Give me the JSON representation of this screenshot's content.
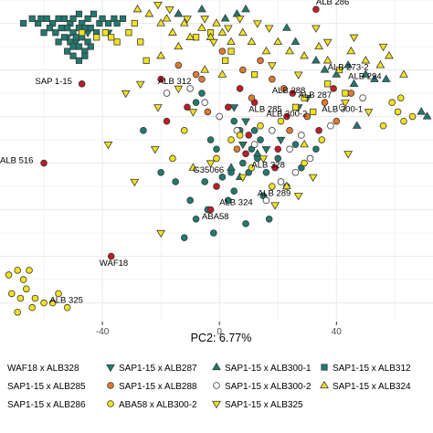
{
  "chart_data": {
    "type": "scatter",
    "xlabel": "PC2: 6.77%",
    "ylabel": "",
    "x_ticks": [
      -40,
      0,
      40
    ],
    "xlim": [
      -75,
      73
    ],
    "ylim": [
      -44,
      25
    ],
    "grid": true,
    "legend_position": "bottom",
    "colors": {
      "green": "#1f7a70",
      "red": "#c01c25",
      "orange": "#e3792d",
      "yellow": "#f2e21a",
      "white": "#ffffff",
      "outline": "#3a3a3a",
      "grid": "#ebebeb"
    },
    "series": [
      {
        "name": "WAF18 x ALB328",
        "shape": "circle",
        "fill": "green",
        "points": [
          [
            -8,
            3
          ],
          [
            -6,
            5
          ],
          [
            -3,
            -5
          ],
          [
            -1,
            -7
          ],
          [
            5,
            -1
          ],
          [
            7,
            -3
          ],
          [
            8,
            -10
          ],
          [
            10,
            -12
          ],
          [
            11,
            -7
          ],
          [
            13,
            -9
          ],
          [
            14,
            -5
          ],
          [
            12,
            -3
          ],
          [
            -15,
            -14
          ],
          [
            -10,
            -18
          ],
          [
            -4,
            -20
          ],
          [
            -8,
            -22
          ],
          [
            -2,
            -25
          ],
          [
            3,
            -18
          ],
          [
            1,
            -13
          ],
          [
            5,
            -16
          ],
          [
            -20,
            -12
          ],
          [
            -26,
            -3
          ],
          [
            4,
            -12
          ],
          [
            -5,
            -14
          ],
          [
            15,
            -17
          ],
          [
            16,
            -12
          ],
          [
            23,
            -15
          ],
          [
            28,
            -11
          ],
          [
            26,
            -6
          ],
          [
            33,
            -7
          ],
          [
            17,
            -22
          ],
          [
            9,
            -23
          ],
          [
            20,
            -9
          ],
          [
            -12,
            -26
          ]
        ]
      },
      {
        "name": "SAP1-15 x ALB287",
        "shape": "triangle-down",
        "fill": "green",
        "points": [
          [
            -52,
            17
          ],
          [
            -49,
            16
          ],
          [
            -45,
            18
          ],
          [
            -38,
            18
          ],
          [
            5,
            2
          ],
          [
            9,
            -1
          ],
          [
            16,
            -7
          ],
          [
            21,
            -5
          ],
          [
            27,
            2
          ],
          [
            30,
            4
          ],
          [
            8,
            -6
          ]
        ]
      },
      {
        "name": "SAP1-15 x ALB300-1",
        "shape": "triangle-up",
        "fill": "green",
        "points": [
          [
            -14,
            22
          ],
          [
            -6,
            23
          ],
          [
            2,
            21
          ],
          [
            6,
            22
          ],
          [
            9,
            23
          ],
          [
            23,
            19
          ],
          [
            26,
            16
          ],
          [
            33,
            12
          ],
          [
            36,
            10
          ],
          [
            40,
            9
          ],
          [
            44,
            11
          ],
          [
            46,
            7
          ],
          [
            50,
            9
          ],
          [
            53,
            8
          ],
          [
            57,
            8
          ],
          [
            71,
            0
          ],
          [
            69,
            1
          ],
          [
            47,
            -2
          ],
          [
            13,
            -8
          ],
          [
            7,
            -13
          ],
          [
            4,
            -11
          ],
          [
            -14,
            22
          ]
        ]
      },
      {
        "name": "SAP1-15 x ALB312",
        "shape": "square",
        "fill": "green",
        "points": [
          [
            -67,
            20
          ],
          [
            -64,
            21
          ],
          [
            -62,
            20
          ],
          [
            -61,
            21
          ],
          [
            -59,
            21
          ],
          [
            -57,
            20
          ],
          [
            -55,
            21
          ],
          [
            -53,
            21
          ],
          [
            -51,
            20
          ],
          [
            -50,
            21
          ],
          [
            -48,
            22
          ],
          [
            -47,
            20
          ],
          [
            -45,
            21
          ],
          [
            -43,
            22
          ],
          [
            -41,
            20
          ],
          [
            -40,
            21
          ],
          [
            -38,
            20
          ],
          [
            -36,
            21
          ],
          [
            -35,
            20
          ],
          [
            -33,
            21
          ],
          [
            -60,
            18
          ],
          [
            -58,
            19
          ],
          [
            -56,
            18
          ],
          [
            -54,
            19
          ],
          [
            -52,
            19
          ],
          [
            -50,
            18
          ],
          [
            -48,
            19
          ],
          [
            -46,
            19
          ],
          [
            -44,
            19
          ],
          [
            -42,
            18
          ],
          [
            -55,
            16
          ],
          [
            -53,
            17
          ],
          [
            -51,
            16
          ],
          [
            -49,
            17
          ],
          [
            -47,
            17
          ],
          [
            -45,
            16
          ],
          [
            -52,
            14
          ],
          [
            -50,
            15
          ],
          [
            -48,
            15
          ],
          [
            -46,
            14
          ],
          [
            -44,
            15
          ],
          [
            -50,
            13
          ],
          [
            -48,
            12
          ],
          [
            -46,
            13
          ]
        ]
      },
      {
        "name": "SAP1-15 x ALB285",
        "shape": "circle",
        "fill": "red",
        "points": [
          [
            -47,
            7
          ],
          [
            -20,
            8
          ],
          [
            -11,
            2
          ],
          [
            -18,
            -1
          ],
          [
            3,
            2
          ],
          [
            7,
            6
          ],
          [
            9,
            -8
          ],
          [
            -1,
            -15
          ],
          [
            -3,
            -20
          ],
          [
            23,
            0
          ],
          [
            25,
            5
          ],
          [
            34,
            -3
          ],
          [
            39,
            6
          ],
          [
            33,
            23
          ],
          [
            -60,
            -10
          ],
          [
            -37,
            -30
          ],
          [
            10,
            -4
          ],
          [
            20,
            -7
          ],
          [
            19,
            -11
          ],
          [
            12,
            3
          ]
        ]
      },
      {
        "name": "SAP1-15 x ALB288",
        "shape": "circle",
        "fill": "orange",
        "points": [
          [
            -14,
            11
          ],
          [
            -8,
            9
          ],
          [
            1,
            14
          ],
          [
            8,
            10
          ],
          [
            14,
            12
          ],
          [
            18,
            8
          ],
          [
            22,
            6
          ],
          [
            -4,
            1
          ],
          [
            11,
            4
          ],
          [
            24,
            -3
          ],
          [
            30,
            0
          ],
          [
            36,
            3
          ],
          [
            40,
            -1
          ],
          [
            6,
            -7
          ],
          [
            -6,
            8
          ],
          [
            45,
            5
          ]
        ]
      },
      {
        "name": "SAP1-15 x ALB286",
        "shape": "square",
        "fill": "yellow",
        "points": [
          [
            -47,
            18
          ],
          [
            -42,
            17
          ],
          [
            -39,
            18
          ],
          [
            -37,
            17
          ],
          [
            -35,
            16
          ],
          [
            -31,
            18
          ],
          [
            -29,
            20
          ],
          [
            -27,
            16
          ],
          [
            26,
            2
          ],
          [
            29,
            4
          ],
          [
            37,
            7
          ],
          [
            43,
            5
          ],
          [
            41,
            10
          ],
          [
            -3,
            18
          ],
          [
            -8,
            17
          ],
          [
            2,
            12
          ],
          [
            4,
            14
          ],
          [
            12,
            9
          ],
          [
            32,
            1
          ],
          [
            -25,
            12
          ]
        ]
      },
      {
        "name": "SAP1-15 x ALB300-2",
        "shape": "circle",
        "fill": "white",
        "points": [
          [
            -18,
            5
          ],
          [
            -10,
            6
          ],
          [
            -5,
            3
          ],
          [
            0,
            0
          ],
          [
            6,
            -3
          ],
          [
            12,
            -6
          ],
          [
            18,
            -3
          ],
          [
            24,
            -7
          ],
          [
            28,
            -4
          ],
          [
            31,
            -9
          ],
          [
            21,
            -14
          ],
          [
            16,
            -18
          ],
          [
            38,
            -2
          ],
          [
            42,
            2
          ],
          [
            49,
            4
          ],
          [
            26,
            -12
          ]
        ]
      },
      {
        "name": "ABA58 x ALB300-2",
        "shape": "circle",
        "fill": "yellow",
        "points": [
          [
            -72,
            -34
          ],
          [
            -69,
            -33
          ],
          [
            -67,
            -35
          ],
          [
            -65,
            -33
          ],
          [
            -71,
            -38
          ],
          [
            -68,
            -39
          ],
          [
            -66,
            -37
          ],
          [
            -63,
            -39
          ],
          [
            -69,
            -42
          ],
          [
            -64,
            -41
          ],
          [
            -60,
            -40
          ],
          [
            -52,
            -41
          ],
          [
            -55,
            -38
          ],
          [
            -57,
            -40
          ],
          [
            59,
            3
          ],
          [
            61,
            1
          ],
          [
            62,
            4
          ],
          [
            63,
            -1
          ],
          [
            66,
            0
          ],
          [
            56,
            -2
          ],
          [
            7,
            -4
          ],
          [
            11,
            -11
          ],
          [
            14,
            -2
          ],
          [
            21,
            -1
          ],
          [
            -1,
            -9
          ],
          [
            4,
            -5
          ],
          [
            18,
            -15
          ],
          [
            29,
            -10
          ],
          [
            35,
            -5
          ],
          [
            -12,
            -3
          ],
          [
            -16,
            -9
          ]
        ]
      },
      {
        "name": "SAP1-15 x ALB324",
        "shape": "triangle-up",
        "fill": "yellow",
        "points": [
          [
            -28,
            23
          ],
          [
            -24,
            22
          ],
          [
            -20,
            20
          ],
          [
            -18,
            21
          ],
          [
            -16,
            18
          ],
          [
            -12,
            20
          ],
          [
            -10,
            17
          ],
          [
            -6,
            19
          ],
          [
            -3,
            17
          ],
          [
            -1,
            20
          ],
          [
            1,
            18
          ],
          [
            4,
            16
          ],
          [
            8,
            18
          ],
          [
            11,
            16
          ],
          [
            16,
            14
          ],
          [
            20,
            16
          ],
          [
            24,
            14
          ],
          [
            29,
            13
          ],
          [
            34,
            15
          ],
          [
            37,
            12
          ],
          [
            45,
            14
          ],
          [
            50,
            12
          ],
          [
            55,
            11
          ],
          [
            58,
            13
          ],
          [
            63,
            9
          ],
          [
            -20,
            13
          ],
          [
            -14,
            15
          ],
          [
            1,
            9
          ],
          [
            -5,
            10
          ],
          [
            29,
            -6
          ],
          [
            23,
            -15
          ],
          [
            -9,
            -11
          ]
        ]
      },
      {
        "name": "SAP1-15 x ALB325",
        "shape": "triangle-down",
        "fill": "yellow",
        "points": [
          [
            -21,
            24
          ],
          [
            -17,
            23
          ],
          [
            -11,
            21
          ],
          [
            -5,
            21
          ],
          [
            -2,
            16
          ],
          [
            3,
            19
          ],
          [
            7,
            21
          ],
          [
            13,
            20
          ],
          [
            17,
            19
          ],
          [
            33,
            19
          ],
          [
            37,
            16
          ],
          [
            46,
            17
          ],
          [
            56,
            15
          ],
          [
            -32,
            5
          ],
          [
            -27,
            7
          ],
          [
            -21,
            2
          ],
          [
            -14,
            6
          ],
          [
            -9,
            1
          ],
          [
            -38,
            -6
          ],
          [
            -22,
            -7
          ],
          [
            -3,
            -10
          ],
          [
            8,
            -13
          ],
          [
            15,
            -9
          ],
          [
            19,
            -19
          ],
          [
            27,
            -17
          ],
          [
            32,
            -13
          ],
          [
            18,
            11
          ],
          [
            27,
            9
          ],
          [
            43,
            3
          ],
          [
            51,
            1
          ],
          [
            -20,
            -25
          ],
          [
            -29,
            -14
          ],
          [
            44,
            -8
          ]
        ]
      }
    ],
    "annotations": [
      {
        "text": "ALB 286",
        "x": 33,
        "y": 24
      },
      {
        "text": "SAP 1-15",
        "x": -63,
        "y": 7
      },
      {
        "text": "ALB 312",
        "x": -21,
        "y": 7
      },
      {
        "text": "ALB 273-2",
        "x": 37,
        "y": 10
      },
      {
        "text": "ALB 294",
        "x": 44,
        "y": 8
      },
      {
        "text": "ALB 288",
        "x": 18,
        "y": 5
      },
      {
        "text": "ALB 287",
        "x": 27,
        "y": 4
      },
      {
        "text": "ALB 285",
        "x": 10,
        "y": 1
      },
      {
        "text": "ALB 300-2",
        "x": 16,
        "y": 0
      },
      {
        "text": "ALB 300-1",
        "x": 35,
        "y": 1
      },
      {
        "text": "ALB 516",
        "x": -75,
        "y": -10
      },
      {
        "text": "G35066",
        "x": -9,
        "y": -12
      },
      {
        "text": "ALB 328",
        "x": 11,
        "y": -11
      },
      {
        "text": "ALB 324",
        "x": 0,
        "y": -19
      },
      {
        "text": "ALB 289",
        "x": 13,
        "y": -17
      },
      {
        "text": "ABA58",
        "x": -6,
        "y": -22
      },
      {
        "text": "WAF18",
        "x": -41,
        "y": -32
      },
      {
        "text": "ALB 325",
        "x": -58,
        "y": -40
      }
    ]
  }
}
